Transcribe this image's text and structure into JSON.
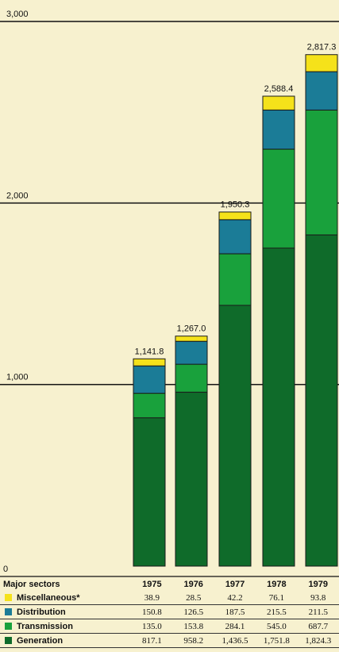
{
  "chart_data": {
    "type": "bar",
    "stacked": true,
    "categories": [
      "1975",
      "1976",
      "1977",
      "1978",
      "1979"
    ],
    "series": [
      {
        "name": "Generation",
        "color": "#0f6b2a",
        "values": [
          817.1,
          958.2,
          1436.5,
          1751.8,
          1824.3
        ]
      },
      {
        "name": "Transmission",
        "color": "#19a13c",
        "values": [
          135.0,
          153.8,
          284.1,
          545.0,
          687.7
        ]
      },
      {
        "name": "Distribution",
        "color": "#1b7c97",
        "values": [
          150.8,
          126.5,
          187.5,
          215.5,
          211.5
        ]
      },
      {
        "name": "Miscellaneous*",
        "color": "#f5e21a",
        "values": [
          38.9,
          28.5,
          42.2,
          76.1,
          93.8
        ]
      }
    ],
    "totals": [
      "1,141.8",
      "1,267.0",
      "1,950.3",
      "2,588.4",
      "2,817.3"
    ],
    "ylim": [
      0,
      3000
    ],
    "yticks": [
      "0",
      "1,000",
      "2,000",
      "3,000"
    ],
    "table": {
      "header_label": "Major sectors",
      "rows": [
        {
          "name": "Miscellaneous*",
          "color": "#f5e21a",
          "values": [
            "38.9",
            "28.5",
            "42.2",
            "76.1",
            "93.8"
          ]
        },
        {
          "name": "Distribution",
          "color": "#1b7c97",
          "values": [
            "150.8",
            "126.5",
            "187.5",
            "215.5",
            "211.5"
          ]
        },
        {
          "name": "Transmission",
          "color": "#19a13c",
          "values": [
            "135.0",
            "153.8",
            "284.1",
            "545.0",
            "687.7"
          ]
        },
        {
          "name": "Generation",
          "color": "#0f6b2a",
          "values": [
            "817.1",
            "958.2",
            "1,436.5",
            "1,751.8",
            "1,824.3"
          ]
        }
      ]
    }
  }
}
